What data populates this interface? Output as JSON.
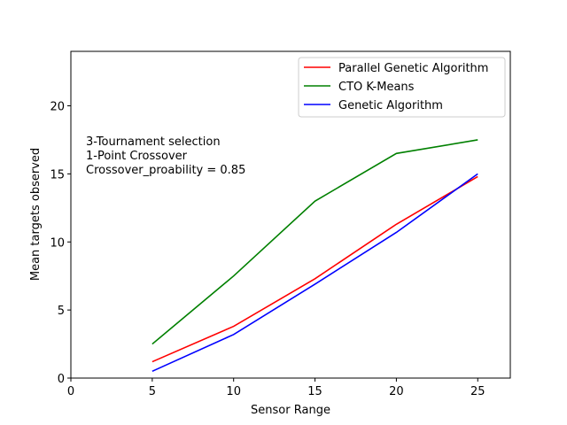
{
  "chart_data": {
    "type": "line",
    "xlabel": "Sensor Range",
    "ylabel": "Mean targets observed",
    "xlim": [
      0,
      27
    ],
    "ylim": [
      0,
      24
    ],
    "xticks": [
      0,
      5,
      10,
      15,
      20,
      25
    ],
    "yticks": [
      0,
      5,
      10,
      15,
      20
    ],
    "grid": false,
    "legend_position": "top-right",
    "x": [
      5,
      10,
      15,
      20,
      25
    ],
    "series": [
      {
        "name": "Parallel Genetic Algorithm",
        "color": "#ff0000",
        "values": [
          1.2,
          3.8,
          7.3,
          11.3,
          14.8
        ]
      },
      {
        "name": "CTO K-Means",
        "color": "#008000",
        "values": [
          2.5,
          7.5,
          13.0,
          16.5,
          17.5
        ]
      },
      {
        "name": "Genetic Algorithm",
        "color": "#0000ff",
        "values": [
          0.5,
          3.2,
          6.9,
          10.7,
          15.0
        ]
      }
    ],
    "annotations": [
      "3-Tournament selection",
      "1-Point Crossover",
      "Crossover_proability = 0.85"
    ]
  }
}
